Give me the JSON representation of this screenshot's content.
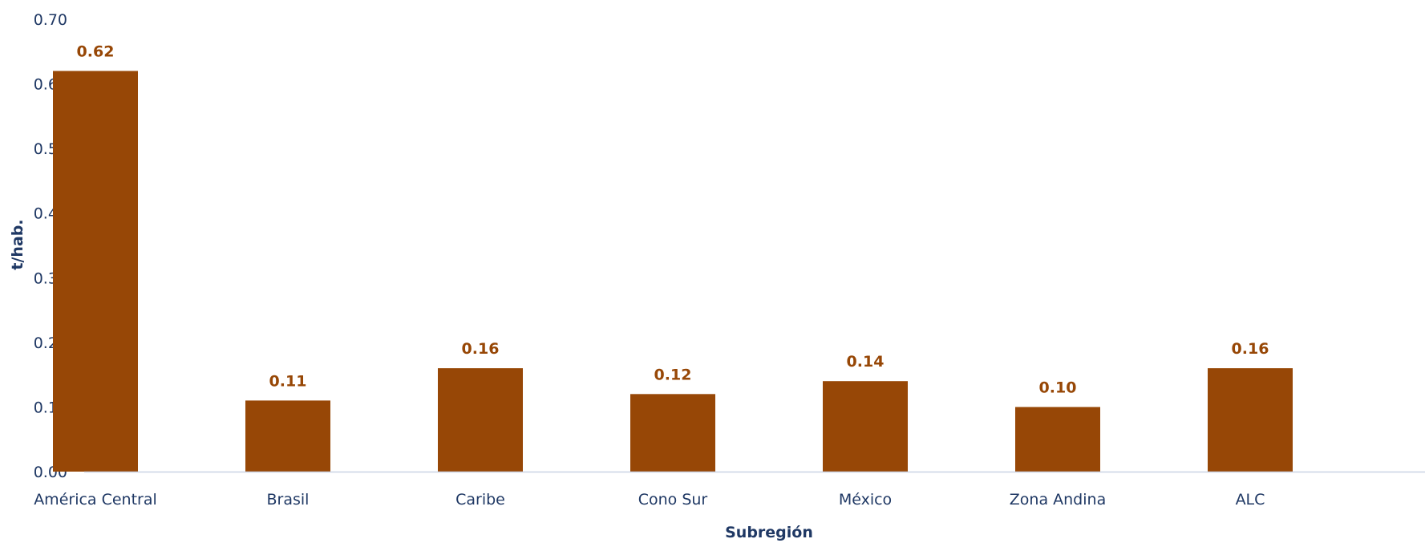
{
  "chart_data": {
    "type": "bar",
    "categories": [
      "América Central",
      "Brasil",
      "Caribe",
      "Cono Sur",
      "México",
      "Zona Andina",
      "ALC"
    ],
    "values": [
      0.62,
      0.11,
      0.16,
      0.12,
      0.14,
      0.1,
      0.16
    ],
    "data_labels": [
      "0.62",
      "0.11",
      "0.16",
      "0.12",
      "0.14",
      "0.10",
      "0.16"
    ],
    "y_ticks": [
      0,
      0.1,
      0.2,
      0.3,
      0.4,
      0.5,
      0.6,
      0.7
    ],
    "y_tick_labels": [
      "0.00",
      "0.10",
      "0.20",
      "0.30",
      "0.40",
      "0.50",
      "0.60",
      "0.70"
    ],
    "ylim": [
      0,
      0.7
    ],
    "xlabel": "Subregión",
    "ylabel": "t/hab.",
    "title": "",
    "grid": false,
    "legend": "none",
    "colors": {
      "bar": "#974706",
      "data_label": "#974706",
      "axis_text": "#1f3864",
      "axis_line": "#c9d3e3"
    }
  }
}
